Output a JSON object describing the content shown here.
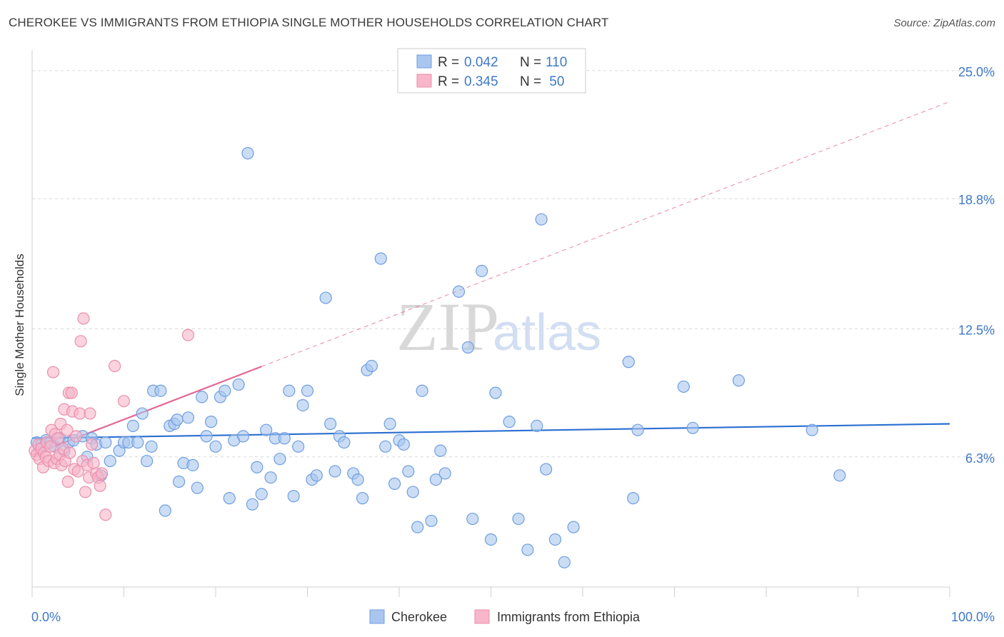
{
  "title": "CHEROKEE VS IMMIGRANTS FROM ETHIOPIA SINGLE MOTHER HOUSEHOLDS CORRELATION CHART",
  "source": "Source: ZipAtlas.com",
  "watermark": {
    "zip": "ZIP",
    "atlas": "atlas"
  },
  "legend": {
    "items": [
      {
        "r_label": "R = ",
        "r_value": "0.042",
        "n_label": "N = ",
        "n_value": "110"
      },
      {
        "r_label": "R = ",
        "r_value": "0.345",
        "n_label": "N = ",
        "n_value": " 50"
      }
    ]
  },
  "bottom_legend": [
    "Cherokee",
    "Immigrants from Ethiopia"
  ],
  "colors": {
    "cherokee_fill": "#a9c6ef",
    "cherokee_stroke": "#6f9fe0",
    "cherokee_line": "#2a6fd1",
    "ethiopia_fill": "#f7b6ca",
    "ethiopia_stroke": "#eb8fac",
    "ethiopia_line": "#e46794",
    "axis_text": "#3f78c9",
    "grid": "#d9d9d9"
  },
  "chart_data": {
    "type": "scatter",
    "xlabel": "",
    "ylabel": "Single Mother Households",
    "xlim": [
      0,
      100
    ],
    "ylim": [
      0,
      26
    ],
    "x_tick_labels": [
      "0.0%",
      "100.0%"
    ],
    "y_ticks": [
      6.3,
      12.5,
      18.8,
      25.0
    ],
    "y_tick_labels": [
      "6.3%",
      "12.5%",
      "18.8%",
      "25.0%"
    ],
    "grid": true,
    "legend_position": "top-center",
    "series": [
      {
        "name": "Cherokee",
        "r": 0.042,
        "n": 110,
        "trend": {
          "x": [
            0,
            100
          ],
          "y": [
            7.2,
            7.9
          ]
        },
        "points": [
          [
            0.5,
            7.0
          ],
          [
            0.8,
            6.7
          ],
          [
            1.0,
            6.9
          ],
          [
            1.5,
            7.1
          ],
          [
            2.0,
            7.0
          ],
          [
            2.5,
            6.8
          ],
          [
            3.0,
            7.2
          ],
          [
            3.5,
            6.6
          ],
          [
            4.0,
            7.0
          ],
          [
            4.5,
            7.1
          ],
          [
            5.5,
            7.3
          ],
          [
            6.0,
            6.3
          ],
          [
            6.5,
            7.2
          ],
          [
            7.0,
            6.9
          ],
          [
            7.5,
            5.4
          ],
          [
            8.0,
            7.0
          ],
          [
            8.5,
            6.1
          ],
          [
            9.5,
            6.6
          ],
          [
            10.0,
            7.0
          ],
          [
            10.5,
            7.0
          ],
          [
            11.0,
            7.8
          ],
          [
            11.5,
            7.0
          ],
          [
            12.0,
            8.4
          ],
          [
            12.5,
            6.1
          ],
          [
            13.0,
            6.8
          ],
          [
            13.2,
            9.5
          ],
          [
            14.0,
            9.5
          ],
          [
            14.5,
            3.7
          ],
          [
            15.0,
            7.8
          ],
          [
            15.5,
            7.9
          ],
          [
            15.8,
            8.1
          ],
          [
            16.0,
            5.1
          ],
          [
            16.5,
            6.0
          ],
          [
            17.0,
            8.2
          ],
          [
            17.5,
            5.9
          ],
          [
            18.0,
            4.8
          ],
          [
            18.5,
            9.2
          ],
          [
            19.0,
            7.3
          ],
          [
            19.5,
            8.0
          ],
          [
            20.0,
            6.8
          ],
          [
            20.5,
            9.2
          ],
          [
            21.0,
            9.5
          ],
          [
            21.5,
            4.3
          ],
          [
            22.0,
            7.1
          ],
          [
            22.5,
            9.8
          ],
          [
            23.0,
            7.3
          ],
          [
            23.5,
            21.0
          ],
          [
            24.0,
            4.0
          ],
          [
            24.5,
            5.8
          ],
          [
            25.0,
            4.5
          ],
          [
            25.5,
            7.6
          ],
          [
            26.0,
            5.3
          ],
          [
            26.5,
            7.2
          ],
          [
            27.0,
            6.2
          ],
          [
            27.5,
            7.2
          ],
          [
            28.0,
            9.5
          ],
          [
            28.5,
            4.4
          ],
          [
            29.0,
            6.8
          ],
          [
            29.5,
            8.8
          ],
          [
            30.0,
            9.5
          ],
          [
            30.5,
            5.2
          ],
          [
            31.0,
            5.4
          ],
          [
            32.0,
            14.0
          ],
          [
            32.5,
            7.9
          ],
          [
            33.0,
            5.6
          ],
          [
            33.5,
            7.3
          ],
          [
            34.0,
            7.0
          ],
          [
            35.0,
            5.5
          ],
          [
            35.5,
            5.2
          ],
          [
            36.0,
            4.3
          ],
          [
            36.5,
            10.5
          ],
          [
            37.0,
            10.7
          ],
          [
            38.0,
            15.9
          ],
          [
            38.5,
            6.8
          ],
          [
            39.0,
            7.9
          ],
          [
            39.5,
            5.0
          ],
          [
            40.0,
            7.1
          ],
          [
            40.5,
            6.9
          ],
          [
            41.0,
            5.6
          ],
          [
            41.5,
            4.6
          ],
          [
            42.0,
            2.9
          ],
          [
            42.5,
            9.5
          ],
          [
            43.5,
            3.2
          ],
          [
            44.0,
            5.2
          ],
          [
            44.5,
            6.6
          ],
          [
            45.0,
            5.5
          ],
          [
            45.5,
            25.0
          ],
          [
            46.5,
            14.3
          ],
          [
            47.5,
            11.6
          ],
          [
            48.0,
            3.3
          ],
          [
            49.0,
            15.3
          ],
          [
            50.0,
            2.3
          ],
          [
            50.5,
            9.4
          ],
          [
            52.0,
            8.0
          ],
          [
            53.0,
            3.3
          ],
          [
            54.0,
            1.8
          ],
          [
            55.0,
            7.8
          ],
          [
            55.5,
            17.8
          ],
          [
            56.0,
            5.7
          ],
          [
            57.0,
            2.3
          ],
          [
            58.0,
            1.2
          ],
          [
            59.0,
            2.9
          ],
          [
            65.0,
            10.9
          ],
          [
            65.5,
            4.3
          ],
          [
            66.0,
            7.6
          ],
          [
            71.0,
            9.7
          ],
          [
            72.0,
            7.7
          ],
          [
            77.0,
            10.0
          ],
          [
            85.0,
            7.6
          ],
          [
            88.0,
            5.4
          ]
        ]
      },
      {
        "name": "Immigrants from Ethiopia",
        "r": 0.345,
        "n": 50,
        "trend": {
          "x": [
            0,
            100
          ],
          "y": [
            6.4,
            23.5
          ]
        },
        "trend_solid_to_x": 25,
        "points": [
          [
            0.3,
            6.6
          ],
          [
            0.5,
            6.4
          ],
          [
            0.7,
            6.9
          ],
          [
            0.8,
            6.2
          ],
          [
            1.0,
            6.7
          ],
          [
            1.2,
            5.8
          ],
          [
            1.3,
            6.5
          ],
          [
            1.5,
            6.3
          ],
          [
            1.6,
            7.0
          ],
          [
            1.8,
            6.1
          ],
          [
            2.0,
            6.8
          ],
          [
            2.1,
            7.6
          ],
          [
            2.3,
            10.4
          ],
          [
            2.4,
            6.0
          ],
          [
            2.5,
            7.4
          ],
          [
            2.7,
            6.2
          ],
          [
            2.8,
            7.2
          ],
          [
            3.0,
            6.4
          ],
          [
            3.1,
            7.9
          ],
          [
            3.2,
            5.9
          ],
          [
            3.4,
            6.7
          ],
          [
            3.5,
            8.6
          ],
          [
            3.6,
            6.1
          ],
          [
            3.8,
            7.6
          ],
          [
            3.9,
            5.1
          ],
          [
            4.0,
            9.4
          ],
          [
            4.1,
            6.5
          ],
          [
            4.3,
            9.4
          ],
          [
            4.4,
            8.5
          ],
          [
            4.6,
            5.7
          ],
          [
            4.8,
            7.3
          ],
          [
            5.0,
            5.6
          ],
          [
            5.2,
            8.4
          ],
          [
            5.3,
            11.9
          ],
          [
            5.5,
            6.1
          ],
          [
            5.6,
            13.0
          ],
          [
            5.8,
            4.6
          ],
          [
            6.0,
            5.9
          ],
          [
            6.2,
            5.3
          ],
          [
            6.3,
            8.4
          ],
          [
            6.5,
            6.9
          ],
          [
            6.7,
            6.0
          ],
          [
            7.0,
            5.5
          ],
          [
            7.2,
            5.3
          ],
          [
            7.4,
            4.9
          ],
          [
            7.6,
            5.5
          ],
          [
            8.0,
            3.5
          ],
          [
            9.0,
            10.7
          ],
          [
            10.0,
            9.0
          ],
          [
            17.0,
            12.2
          ]
        ]
      }
    ]
  }
}
